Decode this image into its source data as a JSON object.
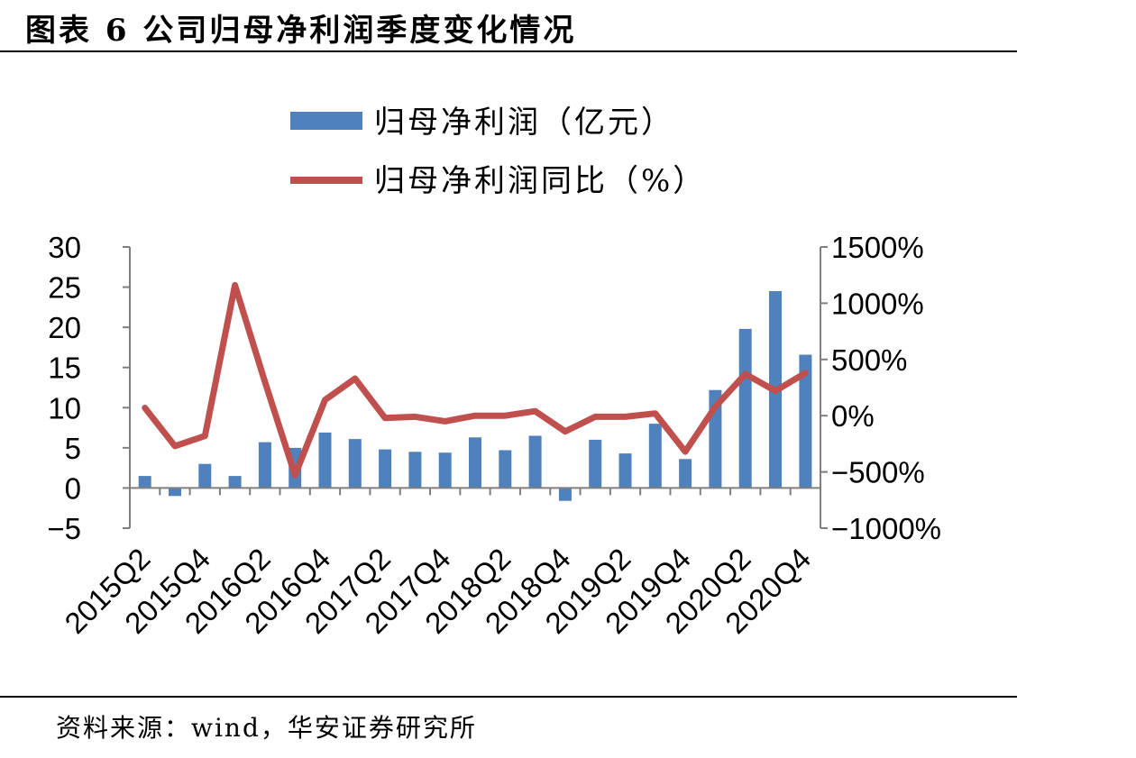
{
  "figure_title": "图表 6 公司归母净利润季度变化情况",
  "source": "资料来源：wind，华安证券研究所",
  "colors": {
    "bar": "#4f81bd",
    "line": "#c0504d",
    "axis": "#7f7f7f"
  },
  "chart_data": {
    "type": "bar+line",
    "categories": [
      "2015Q2",
      "2015Q3",
      "2015Q4",
      "2016Q1",
      "2016Q2",
      "2016Q3",
      "2016Q4",
      "2017Q1",
      "2017Q2",
      "2017Q3",
      "2017Q4",
      "2018Q1",
      "2018Q2",
      "2018Q3",
      "2018Q4",
      "2019Q1",
      "2019Q2",
      "2019Q3",
      "2019Q4",
      "2020Q1",
      "2020Q2",
      "2020Q3",
      "2020Q4"
    ],
    "x_tick_labels": [
      "2015Q2",
      "2015Q4",
      "2016Q2",
      "2016Q4",
      "2017Q2",
      "2017Q4",
      "2018Q2",
      "2018Q4",
      "2019Q2",
      "2019Q4",
      "2020Q2",
      "2020Q4"
    ],
    "series": [
      {
        "name": "归母净利润（亿元）",
        "type": "bar",
        "axis": "left",
        "values": [
          1.5,
          -1.0,
          3.0,
          1.5,
          5.7,
          5.0,
          6.9,
          6.1,
          4.8,
          4.5,
          4.4,
          6.3,
          4.7,
          6.5,
          -1.6,
          6.0,
          4.3,
          8.0,
          3.6,
          12.2,
          19.8,
          24.5,
          16.6
        ]
      },
      {
        "name": "归母净利润同比（%）",
        "type": "line",
        "axis": "right",
        "values": [
          70,
          -270,
          -180,
          1160,
          300,
          -530,
          140,
          330,
          -20,
          -10,
          -50,
          0,
          0,
          40,
          -140,
          -10,
          -10,
          20,
          -320,
          80,
          370,
          220,
          380
        ]
      }
    ],
    "y_left": {
      "min": -5,
      "max": 30,
      "ticks": [
        30,
        25,
        20,
        15,
        10,
        5,
        0,
        -5
      ]
    },
    "y_right": {
      "min": -1000,
      "max": 1500,
      "tick_values": [
        1500,
        1000,
        500,
        0,
        -500,
        -1000
      ],
      "tick_labels": [
        "1500%",
        "1000%",
        "500%",
        "0%",
        "−500%",
        "−1000%"
      ]
    },
    "legend_position": "top",
    "grid": false
  }
}
